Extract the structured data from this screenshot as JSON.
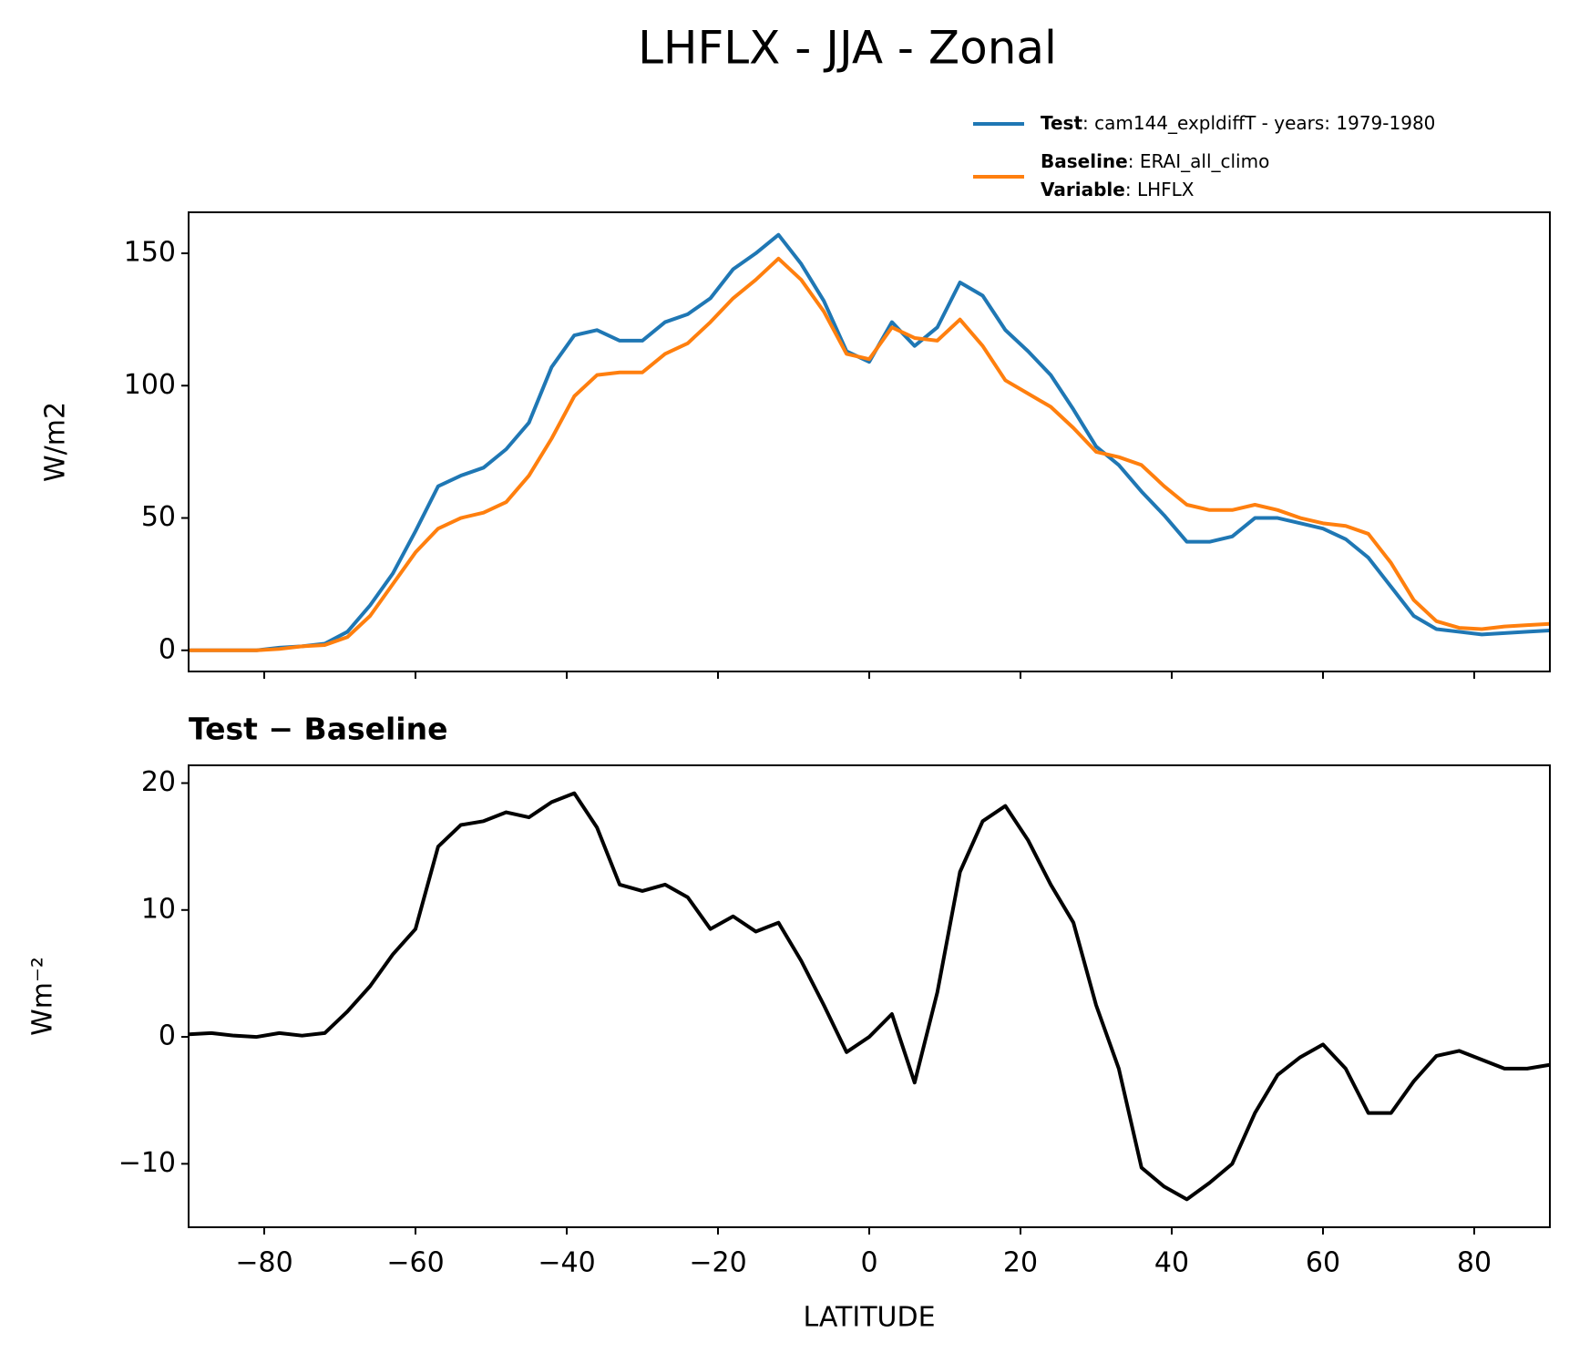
{
  "title": "LHFLX - JJA - Zonal",
  "chart_data": [
    {
      "type": "line",
      "ylabel": "W/m2",
      "x": [
        -90,
        -87,
        -84,
        -81,
        -78,
        -75,
        -72,
        -69,
        -66,
        -63,
        -60,
        -57,
        -54,
        -51,
        -48,
        -45,
        -42,
        -39,
        -36,
        -33,
        -30,
        -27,
        -24,
        -21,
        -18,
        -15,
        -12,
        -9,
        -6,
        -3,
        0,
        3,
        6,
        9,
        12,
        15,
        18,
        21,
        24,
        27,
        30,
        33,
        36,
        39,
        42,
        45,
        48,
        51,
        54,
        57,
        60,
        63,
        66,
        69,
        72,
        75,
        78,
        81,
        84,
        87,
        90
      ],
      "series": [
        {
          "name": "Test",
          "text": ": cam144_expldiffT - years: 1979-1980",
          "color": "#1f77b4",
          "values": [
            0,
            0,
            0,
            0,
            1,
            1.5,
            2.5,
            7,
            17,
            29,
            45,
            62,
            66,
            69,
            76,
            86,
            107,
            119,
            121,
            117,
            117,
            124,
            127,
            133,
            144,
            150,
            157,
            146,
            132,
            113,
            109,
            124,
            115,
            122,
            139,
            134,
            121,
            113,
            104,
            91,
            77,
            70,
            60,
            51,
            41,
            41,
            43,
            50,
            50,
            48,
            46,
            42,
            35,
            24,
            13,
            8,
            7,
            6,
            6.5,
            7,
            7.5
          ]
        },
        {
          "name": "Baseline",
          "text": ": ERAI_all_climo",
          "color": "#ff7f0e",
          "values": [
            0,
            0,
            0,
            0,
            0.5,
            1.5,
            2,
            5,
            13,
            25,
            37,
            46,
            50,
            52,
            56,
            66,
            80,
            96,
            104,
            105,
            105,
            112,
            116,
            124,
            133,
            140,
            148,
            140,
            128,
            112,
            110,
            122,
            118,
            117,
            125,
            115,
            102,
            97,
            92,
            84,
            75,
            73,
            70,
            62,
            55,
            53,
            53,
            55,
            53,
            50,
            48,
            47,
            44,
            33,
            19,
            11,
            8.5,
            8,
            9,
            9.5,
            10
          ]
        }
      ],
      "variable": {
        "label": "Variable",
        "text": ": LHFLX"
      },
      "xlim": [
        -90,
        90
      ],
      "xticks": [
        -80,
        -60,
        -40,
        -20,
        0,
        20,
        40,
        60,
        80
      ],
      "show_xtick_labels": false,
      "ylim": [
        -8,
        165.5
      ],
      "yticks": [
        0,
        50,
        100,
        150
      ]
    },
    {
      "type": "line",
      "title": "Test − Baseline",
      "xlabel": "LATITUDE",
      "ylabel": "Wm⁻²",
      "x": [
        -90,
        -87,
        -84,
        -81,
        -78,
        -75,
        -72,
        -69,
        -66,
        -63,
        -60,
        -57,
        -54,
        -51,
        -48,
        -45,
        -42,
        -39,
        -36,
        -33,
        -30,
        -27,
        -24,
        -21,
        -18,
        -15,
        -12,
        -9,
        -6,
        -3,
        0,
        3,
        6,
        9,
        12,
        15,
        18,
        21,
        24,
        27,
        30,
        33,
        36,
        39,
        42,
        45,
        48,
        51,
        54,
        57,
        60,
        63,
        66,
        69,
        72,
        75,
        78,
        81,
        84,
        87,
        90
      ],
      "series": [
        {
          "color": "#000000",
          "values": [
            0.2,
            0.3,
            0.1,
            0,
            0.3,
            0.1,
            0.3,
            2,
            4,
            6.5,
            8.5,
            15,
            16.7,
            17,
            17.7,
            17.3,
            18.5,
            19.2,
            16.5,
            12,
            11.5,
            12,
            11,
            8.5,
            9.5,
            8.3,
            9,
            6,
            2.5,
            -1.2,
            0,
            1.8,
            -3.6,
            3.5,
            13,
            17,
            18.2,
            15.5,
            12,
            9,
            2.5,
            -2.5,
            -10.3,
            -11.8,
            -12.8,
            -11.5,
            -10,
            -6,
            -3,
            -1.6,
            -0.6,
            -2.5,
            -6,
            -6,
            -3.5,
            -1.5,
            -1.1,
            -1.8,
            -2.5,
            -2.5,
            -2.2
          ]
        }
      ],
      "xlim": [
        -90,
        90
      ],
      "xticks": [
        {
          "value": -80,
          "label": "−80"
        },
        {
          "value": -60,
          "label": "−60"
        },
        {
          "value": -40,
          "label": "−40"
        },
        {
          "value": -20,
          "label": "−20"
        },
        0,
        20,
        40,
        60,
        80
      ],
      "show_xtick_labels": true,
      "ylim": [
        -15,
        21.4
      ],
      "yticks": [
        {
          "value": -10,
          "label": "−10"
        },
        0,
        10,
        20
      ]
    }
  ]
}
